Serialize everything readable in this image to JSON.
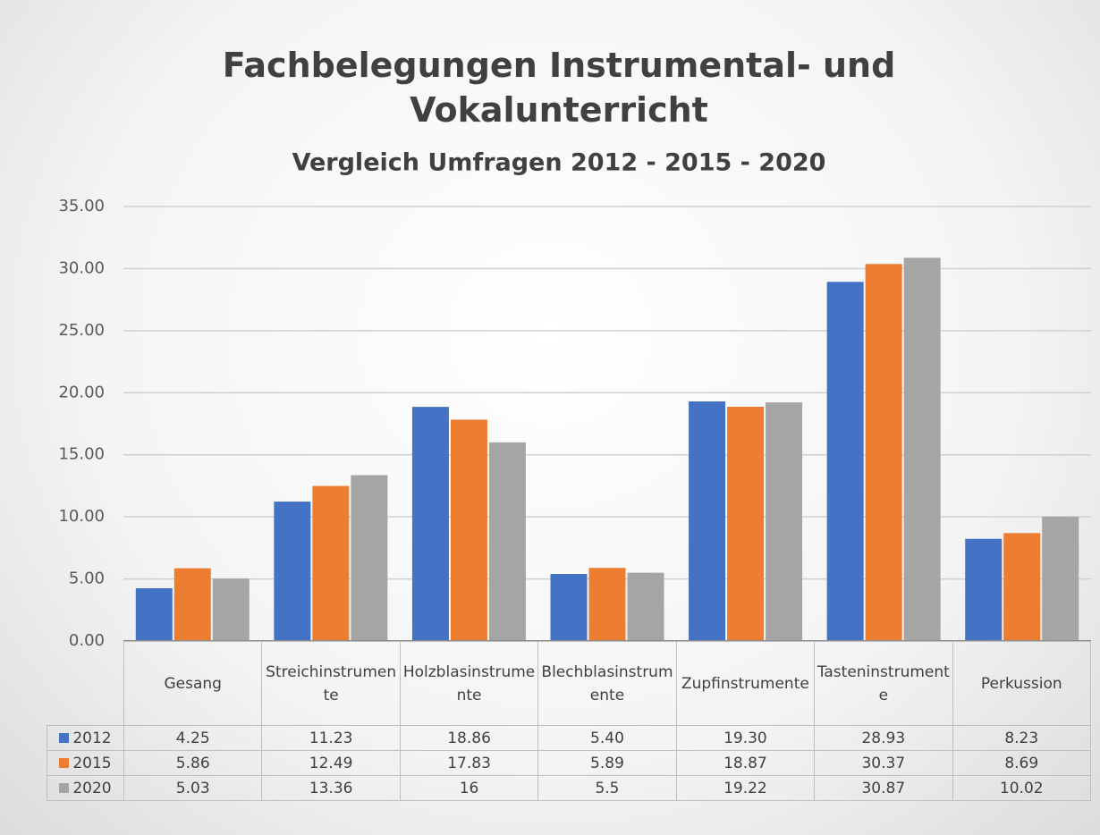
{
  "chart_data": {
    "type": "bar",
    "title": "Fachbelegungen Instrumental- und Vokalunterricht",
    "subtitle": "Vergleich Umfragen 2012 - 2015 - 2020",
    "categories": [
      "Gesang",
      "Streichinstrumente",
      "Holzblasinstrumente",
      "Blechblasinstrumente",
      "Zupfinstrumente",
      "Tasteninstrumente",
      "Perkussion"
    ],
    "series": [
      {
        "name": "2012",
        "color": "#4472c4",
        "values": [
          4.25,
          11.23,
          18.86,
          5.4,
          19.3,
          28.93,
          8.23
        ],
        "value_labels": [
          "4.25",
          "11.23",
          "18.86",
          "5.40",
          "19.30",
          "28.93",
          "8.23"
        ]
      },
      {
        "name": "2015",
        "color": "#ed7d31",
        "values": [
          5.86,
          12.49,
          17.83,
          5.89,
          18.87,
          30.37,
          8.69
        ],
        "value_labels": [
          "5.86",
          "12.49",
          "17.83",
          "5.89",
          "18.87",
          "30.37",
          "8.69"
        ]
      },
      {
        "name": "2020",
        "color": "#a5a5a5",
        "values": [
          5.03,
          13.36,
          16,
          5.5,
          19.22,
          30.87,
          10.02
        ],
        "value_labels": [
          "5.03",
          "13.36",
          "16",
          "5.5",
          "19.22",
          "30.87",
          "10.02"
        ]
      }
    ],
    "ylim": [
      0,
      35
    ],
    "yticks": [
      {
        "value": 0,
        "label": "0.00"
      },
      {
        "value": 5,
        "label": "5.00"
      },
      {
        "value": 10,
        "label": "10.00"
      },
      {
        "value": 15,
        "label": "15.00"
      },
      {
        "value": 20,
        "label": "20.00"
      },
      {
        "value": 25,
        "label": "25.00"
      },
      {
        "value": 30,
        "label": "30.00"
      },
      {
        "value": 35,
        "label": "35.00"
      }
    ],
    "grid": true
  }
}
